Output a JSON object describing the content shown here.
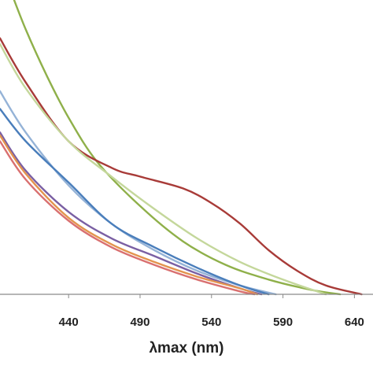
{
  "chart_data": {
    "type": "line",
    "title": "",
    "xlabel": "λmax (nm)",
    "ylabel": "",
    "xlim": [
      392,
      653
    ],
    "ylim": [
      0,
      1
    ],
    "x_ticks": [
      440,
      490,
      540,
      590,
      640
    ],
    "grid": false,
    "legend": "none",
    "series": [
      {
        "color": "#8fb04a",
        "x": [
          398,
          410,
          425,
          440,
          460,
          490,
          520,
          550,
          580,
          610,
          630
        ],
        "y": [
          1.05,
          0.9,
          0.74,
          0.6,
          0.45,
          0.3,
          0.18,
          0.1,
          0.05,
          0.015,
          0
        ]
      },
      {
        "color": "#a83b38",
        "x": [
          392,
          410,
          440,
          470,
          490,
          520,
          540,
          560,
          580,
          600,
          620,
          645
        ],
        "y": [
          0.87,
          0.72,
          0.52,
          0.43,
          0.4,
          0.36,
          0.31,
          0.24,
          0.15,
          0.08,
          0.03,
          0
        ]
      },
      {
        "color": "#c4d79b",
        "x": [
          392,
          410,
          440,
          470,
          500,
          530,
          560,
          590,
          620
        ],
        "y": [
          0.85,
          0.7,
          0.52,
          0.4,
          0.29,
          0.19,
          0.11,
          0.05,
          0
        ]
      },
      {
        "color": "#95b3d7",
        "x": [
          392,
          410,
          440,
          470,
          500,
          530,
          560,
          585
        ],
        "y": [
          0.69,
          0.55,
          0.37,
          0.24,
          0.15,
          0.08,
          0.03,
          0
        ]
      },
      {
        "color": "#4a7ebb",
        "x": [
          392,
          410,
          440,
          470,
          500,
          530,
          560,
          580
        ],
        "y": [
          0.63,
          0.52,
          0.38,
          0.24,
          0.16,
          0.09,
          0.03,
          0
        ]
      },
      {
        "color": "#7a5fa3",
        "x": [
          392,
          410,
          440,
          470,
          500,
          530,
          560,
          575
        ],
        "y": [
          0.55,
          0.42,
          0.28,
          0.19,
          0.13,
          0.07,
          0.02,
          0
        ]
      },
      {
        "color": "#e3944e",
        "x": [
          392,
          410,
          440,
          470,
          500,
          530,
          560,
          572
        ],
        "y": [
          0.54,
          0.41,
          0.26,
          0.17,
          0.11,
          0.06,
          0.02,
          0
        ]
      },
      {
        "color": "#d97070",
        "x": [
          392,
          410,
          440,
          470,
          500,
          530,
          560,
          570
        ],
        "y": [
          0.52,
          0.39,
          0.25,
          0.16,
          0.1,
          0.05,
          0.01,
          0
        ]
      }
    ]
  }
}
